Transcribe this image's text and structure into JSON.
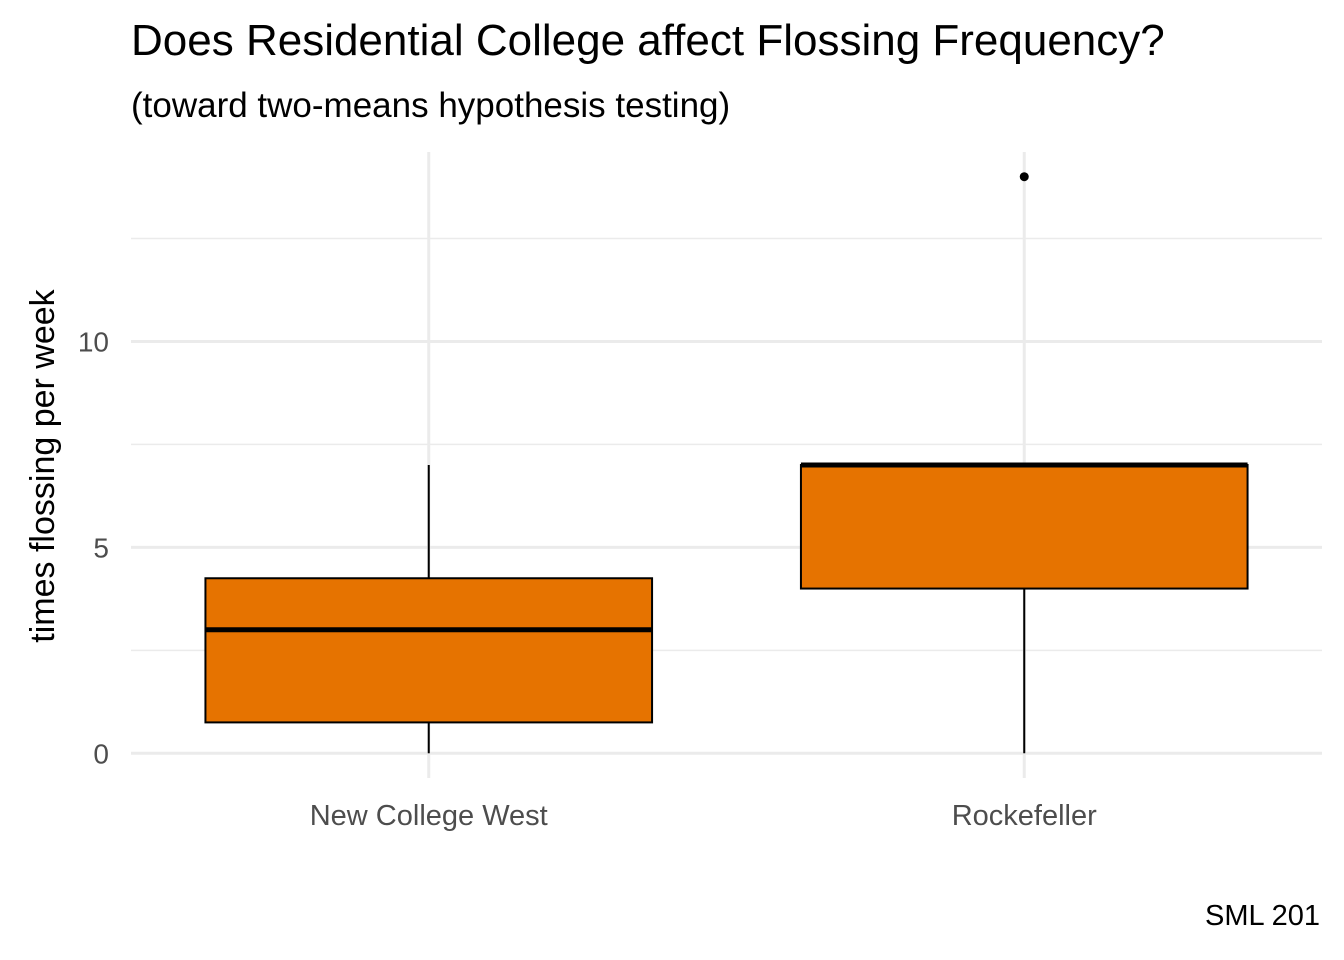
{
  "chart_data": {
    "type": "boxplot",
    "title": "Does Residential College affect Flossing Frequency?",
    "subtitle": "(toward two-means hypothesis testing)",
    "caption": "SML 201",
    "xlabel": "",
    "ylabel": "times flossing per week",
    "categories": [
      "New College West",
      "Rockefeller"
    ],
    "ylim": [
      -0.6,
      14.6
    ],
    "yticks": [
      0,
      5,
      10
    ],
    "grid": true,
    "fill_color": "#E67300",
    "boxes": [
      {
        "category": "New College West",
        "whisker_low": 0,
        "q1": 0.75,
        "median": 3,
        "q3": 4.25,
        "whisker_high": 7,
        "outliers": []
      },
      {
        "category": "Rockefeller",
        "whisker_low": 0,
        "q1": 4,
        "median": 7,
        "q3": 7,
        "whisker_high": 7,
        "outliers": [
          14
        ]
      }
    ]
  }
}
